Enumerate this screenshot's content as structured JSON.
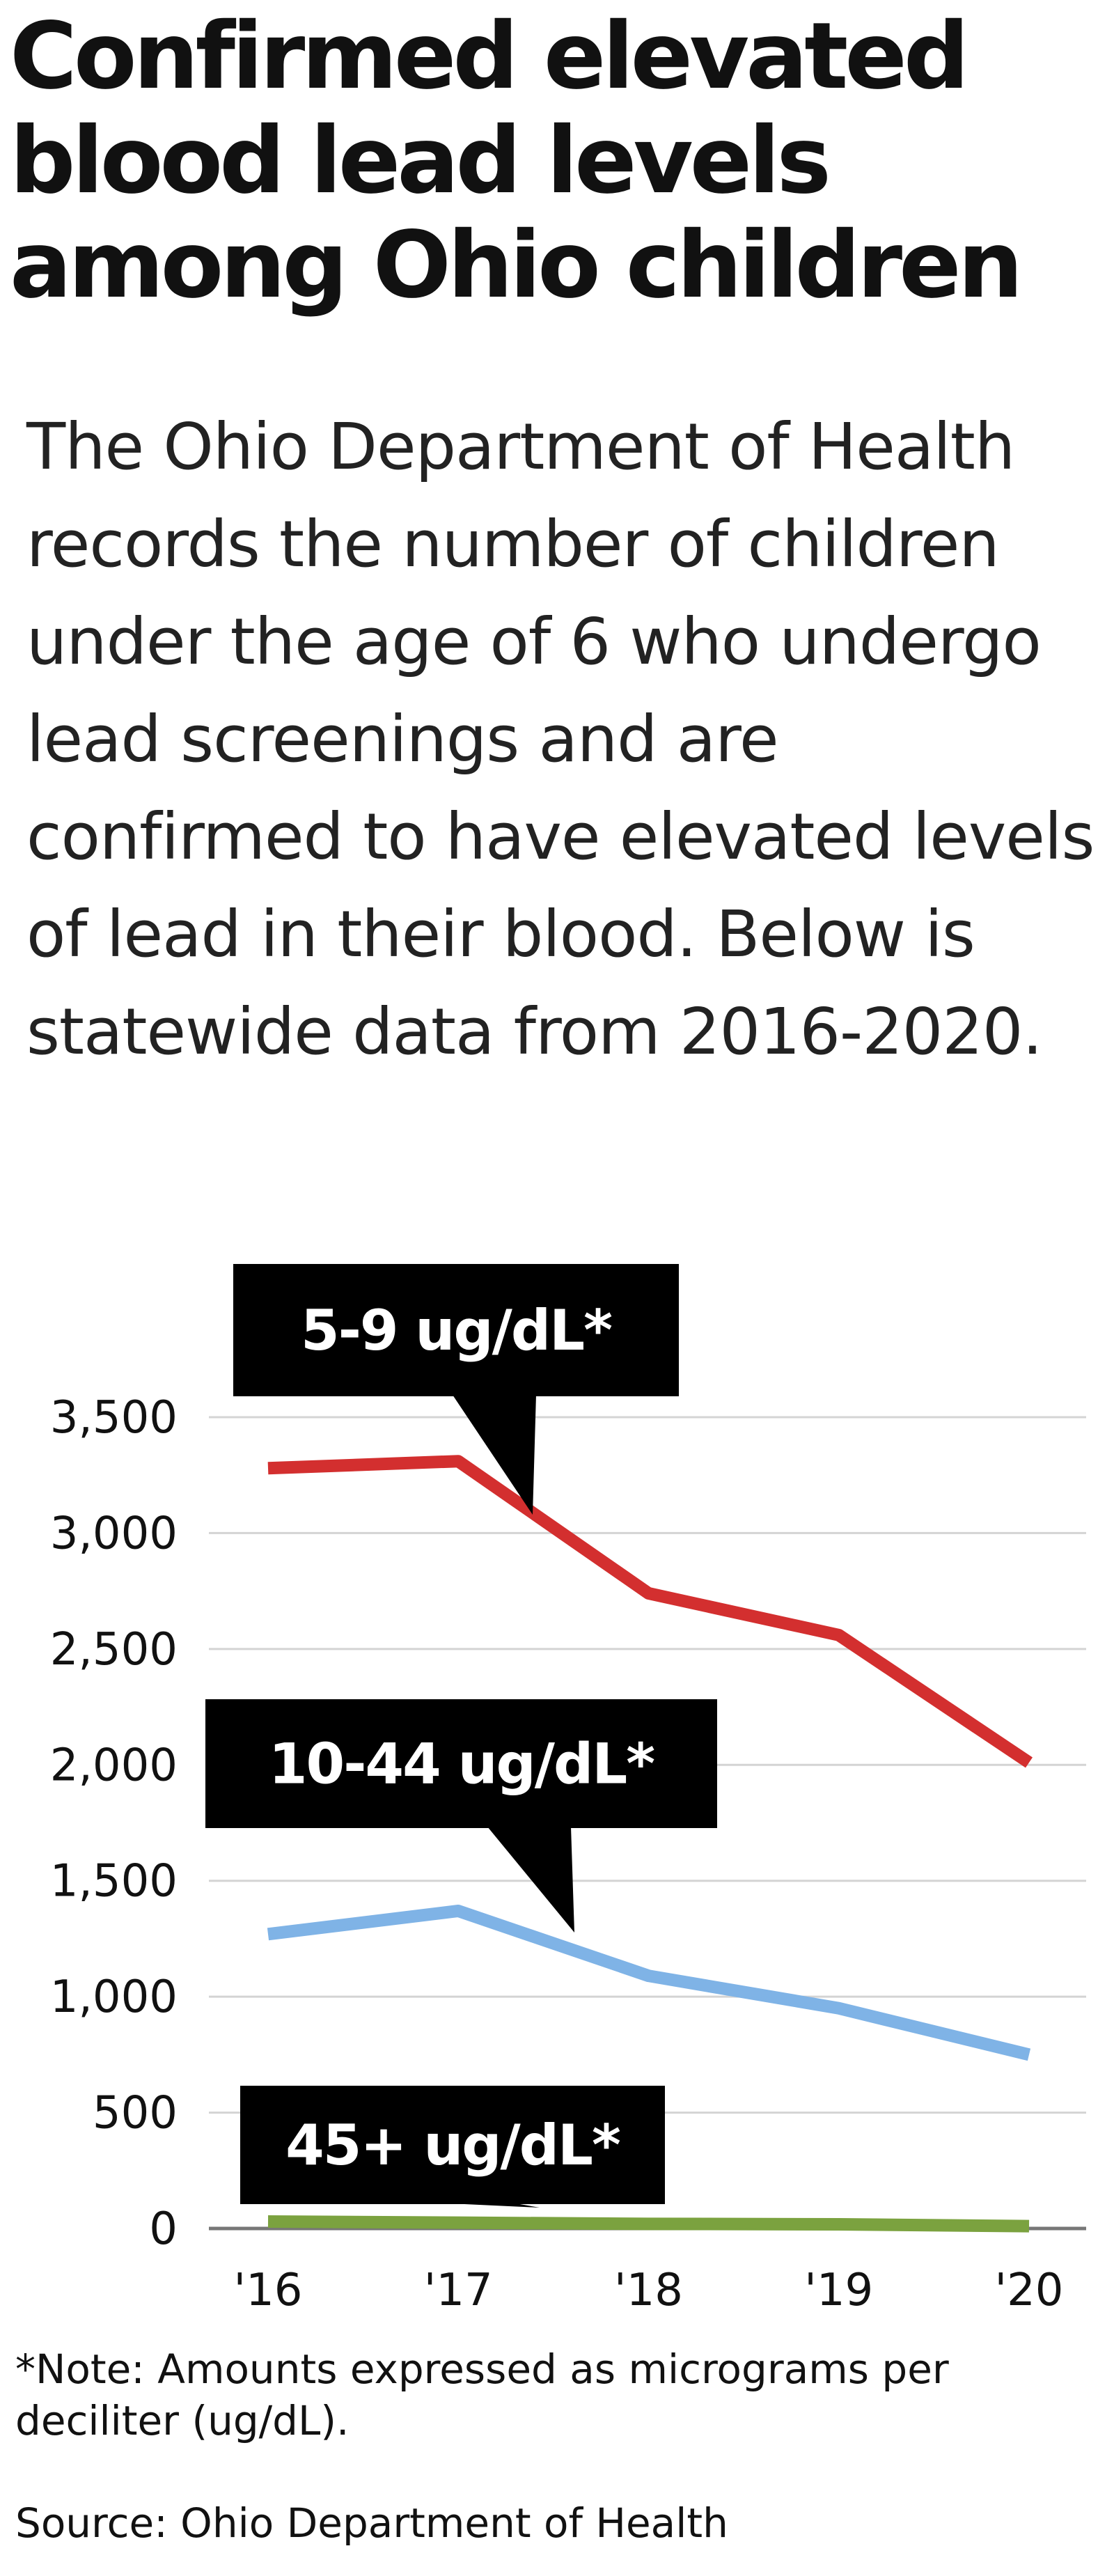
{
  "header": {
    "title": "Confirmed elevated blood lead levels among Ohio children",
    "subtitle": "The Ohio Department of Health records the number of children under the age of 6 who undergo lead screenings and are confirmed to have elevated levels of lead in their blood. Below is statewide data from 2016-2020."
  },
  "chart_data": {
    "type": "line",
    "x": [
      "'16",
      "'17",
      "'18",
      "'19",
      "'20"
    ],
    "ylim": [
      0,
      3500
    ],
    "yticks": [
      0,
      500,
      1000,
      1500,
      2000,
      2500,
      3000,
      3500
    ],
    "ytick_labels": [
      "0",
      "500",
      "1,000",
      "1,500",
      "2,000",
      "2,500",
      "3,000",
      "3,500"
    ],
    "grid": true,
    "series": [
      {
        "name": "5-9 ug/dL*",
        "color": "#d32f2f",
        "values": [
          3280,
          3310,
          2740,
          2560,
          2010
        ]
      },
      {
        "name": "10-44 ug/dL*",
        "color": "#7fb3e6",
        "values": [
          1270,
          1370,
          1090,
          950,
          750
        ]
      },
      {
        "name": "45+ ug/dL*",
        "color": "#7ba23f",
        "values": [
          30,
          25,
          20,
          18,
          10
        ]
      }
    ]
  },
  "footer": {
    "note": "*Note: Amounts expressed as micrograms per deciliter (ug/dL).",
    "source": "Source: Ohio Department of Health"
  }
}
